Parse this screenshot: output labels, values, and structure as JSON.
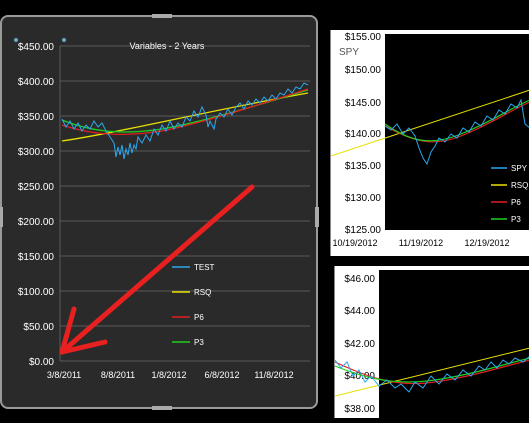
{
  "main_chart": {
    "title": "Variables - 2 Years",
    "y_ticks": [
      "$450.00",
      "$400.00",
      "$350.00",
      "$300.00",
      "$250.00",
      "$200.00",
      "$150.00",
      "$100.00",
      "$50.00",
      "$0.00"
    ],
    "x_ticks": [
      "3/8/2011",
      "8/8/2011",
      "1/8/2012",
      "6/8/2012",
      "11/8/2012"
    ],
    "legend": [
      "TEST",
      "RSQ",
      "P6",
      "P3"
    ]
  },
  "top_right_chart": {
    "series_label": "SPY",
    "y_ticks": [
      "$155.00",
      "$150.00",
      "$145.00",
      "$140.00",
      "$135.00",
      "$130.00",
      "$125.00"
    ],
    "x_ticks": [
      "10/19/2012",
      "11/19/2012",
      "12/19/2012"
    ],
    "legend": [
      "SPY",
      "RSQ",
      "P6",
      "P3"
    ]
  },
  "bottom_right_chart": {
    "y_ticks": [
      "$46.00",
      "$44.00",
      "$42.00",
      "$40.00",
      "$38.00"
    ]
  },
  "colors": {
    "test": "#2aa8f0",
    "rsq": "#e8e000",
    "p6": "#e02020",
    "p3": "#20d020",
    "arrow": "#e82020"
  },
  "chart_data": [
    {
      "type": "line",
      "title": "Variables - 2 Years",
      "x": [
        "3/8/2011",
        "8/8/2011",
        "1/8/2012",
        "6/8/2012",
        "11/8/2012"
      ],
      "series": [
        {
          "name": "TEST",
          "values": [
            340,
            315,
            325,
            350,
            375
          ]
        },
        {
          "name": "RSQ",
          "values": [
            315,
            330,
            345,
            362,
            378
          ]
        },
        {
          "name": "P6",
          "values": [
            338,
            325,
            330,
            355,
            380
          ]
        },
        {
          "name": "P3",
          "values": [
            345,
            325,
            330,
            352,
            382
          ]
        }
      ],
      "ylim": [
        0,
        450
      ]
    }
  ]
}
